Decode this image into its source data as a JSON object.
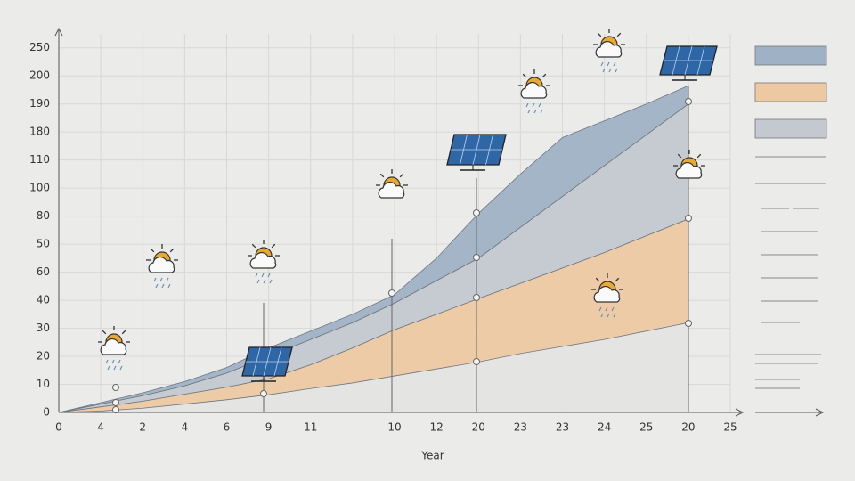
{
  "chart_data": {
    "type": "stacked-area",
    "x_label": "Year",
    "categories": [
      "0",
      "4",
      "2",
      "4",
      "6",
      "9",
      "11",
      null,
      "10",
      "12",
      "20",
      "23",
      "23",
      "24",
      "25",
      "20",
      "25"
    ],
    "series": [
      {
        "color": "#e4e4e2",
        "values": [
          0,
          0.05,
          0.15,
          0.3,
          0.45,
          0.63,
          0.85,
          1.05,
          1.3,
          1.55,
          1.8,
          2.1,
          2.35,
          2.6,
          2.9,
          3.2,
          null
        ]
      },
      {
        "color": "#ecc9a2",
        "values": [
          0,
          0.15,
          0.25,
          0.35,
          0.45,
          0.57,
          0.85,
          1.25,
          1.65,
          1.95,
          2.26,
          2.5,
          2.8,
          3.1,
          3.4,
          3.7,
          null
        ]
      },
      {
        "color": "#c3c9cf",
        "values": [
          0,
          0.1,
          0.2,
          0.3,
          0.5,
          0.8,
          0.9,
          0.9,
          0.95,
          1.2,
          1.44,
          2.0,
          2.55,
          3.1,
          3.6,
          4.1,
          null
        ]
      },
      {
        "color": "#9fb2c5",
        "values": [
          0,
          0.05,
          0.1,
          0.15,
          0.2,
          0.3,
          0.3,
          0.3,
          0.3,
          0.8,
          1.6,
          1.9,
          2.1,
          1.6,
          1.1,
          0.65,
          null
        ]
      }
    ],
    "ylim": [
      0,
      13.5
    ],
    "yticks": [
      {
        "value": 0,
        "label": "0"
      },
      {
        "value": 1,
        "label": "10"
      },
      {
        "value": 2,
        "label": "20"
      },
      {
        "value": 3,
        "label": "30"
      },
      {
        "value": 4,
        "label": "40"
      },
      {
        "value": 5,
        "label": "60"
      },
      {
        "value": 6,
        "label": "50"
      },
      {
        "value": 7,
        "label": "80"
      },
      {
        "value": 8,
        "label": "100"
      },
      {
        "value": 9,
        "label": "110"
      },
      {
        "value": 10,
        "label": "180"
      },
      {
        "value": 11,
        "label": "190"
      },
      {
        "value": 12,
        "label": "200"
      },
      {
        "value": 13,
        "label": "250"
      }
    ],
    "grid": true
  }
}
